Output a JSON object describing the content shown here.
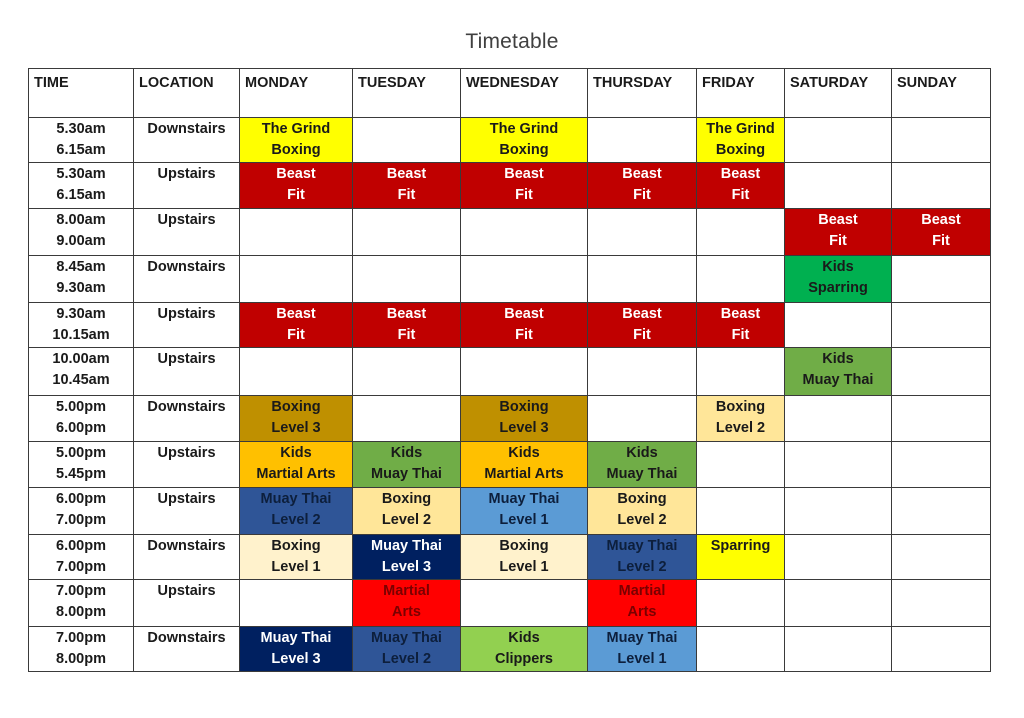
{
  "title": "Timetable",
  "colors": {
    "yellow": "#ffff00",
    "dark_red": "#c00000",
    "bright_red": "#ff0000",
    "green": "#00b050",
    "olive_green": "#70ad47",
    "light_green": "#92d050",
    "dark_gold": "#bf9000",
    "gold": "#ffc000",
    "light_tan": "#ffe699",
    "cream": "#fff2cc",
    "navy": "#002060",
    "mid_blue": "#2f5597",
    "light_blue": "#5b9bd5",
    "border": "#3a3a3a"
  },
  "headers": [
    "TIME",
    "LOCATION",
    "MONDAY",
    "TUESDAY",
    "WEDNESDAY",
    "THURSDAY",
    "FRIDAY",
    "SATURDAY",
    "SUNDAY"
  ],
  "rows": [
    {
      "time": [
        "5.30am",
        "6.15am"
      ],
      "location": "Downstairs",
      "cells": [
        [
          "The Grind",
          "Boxing",
          "yellow"
        ],
        null,
        [
          "The Grind",
          "Boxing",
          "yellow"
        ],
        null,
        [
          "The Grind",
          "Boxing",
          "yellow"
        ],
        null,
        null
      ]
    },
    {
      "time": [
        "5.30am",
        "6.15am"
      ],
      "location": "Upstairs",
      "cells": [
        [
          "Beast",
          "Fit",
          "dark_red"
        ],
        [
          "Beast",
          "Fit",
          "dark_red"
        ],
        [
          "Beast",
          "Fit",
          "dark_red"
        ],
        [
          "Beast",
          "Fit",
          "dark_red"
        ],
        [
          "Beast",
          "Fit",
          "dark_red"
        ],
        null,
        null
      ]
    },
    {
      "time": [
        "8.00am",
        "9.00am"
      ],
      "location": "Upstairs",
      "cells": [
        null,
        null,
        null,
        null,
        null,
        [
          "Beast",
          "Fit",
          "dark_red"
        ],
        [
          "Beast",
          "Fit",
          "dark_red"
        ]
      ]
    },
    {
      "time": [
        "8.45am",
        "9.30am"
      ],
      "location": "Downstairs",
      "cells": [
        null,
        null,
        null,
        null,
        null,
        [
          "Kids",
          "Sparring",
          "green"
        ],
        null
      ]
    },
    {
      "time": [
        "9.30am",
        "10.15am"
      ],
      "location": "Upstairs",
      "cells": [
        [
          "Beast",
          "Fit",
          "dark_red"
        ],
        [
          "Beast",
          "Fit",
          "dark_red"
        ],
        [
          "Beast",
          "Fit",
          "dark_red"
        ],
        [
          "Beast",
          "Fit",
          "dark_red"
        ],
        [
          "Beast",
          "Fit",
          "dark_red"
        ],
        null,
        null
      ]
    },
    {
      "time": [
        "10.00am",
        "10.45am"
      ],
      "location": "Upstairs",
      "cells": [
        null,
        null,
        null,
        null,
        null,
        [
          "Kids",
          "Muay Thai",
          "olive_green"
        ],
        null
      ]
    },
    {
      "time": [
        "5.00pm",
        "6.00pm"
      ],
      "location": "Downstairs",
      "cells": [
        [
          "Boxing",
          "Level 3",
          "dark_gold"
        ],
        null,
        [
          "Boxing",
          "Level 3",
          "dark_gold"
        ],
        null,
        [
          "Boxing",
          "Level 2",
          "light_tan"
        ],
        null,
        null
      ]
    },
    {
      "time": [
        "5.00pm",
        "5.45pm"
      ],
      "location": "Upstairs",
      "cells": [
        [
          "Kids",
          "Martial Arts",
          "gold"
        ],
        [
          "Kids",
          "Muay Thai",
          "olive_green"
        ],
        [
          "Kids",
          "Martial Arts",
          "gold"
        ],
        [
          "Kids",
          "Muay Thai",
          "olive_green"
        ],
        null,
        null,
        null
      ]
    },
    {
      "time": [
        "6.00pm",
        "7.00pm"
      ],
      "location": "Upstairs",
      "cells": [
        [
          "Muay Thai",
          "Level 2",
          "mid_blue"
        ],
        [
          "Boxing",
          "Level 2",
          "light_tan"
        ],
        [
          "Muay Thai",
          "Level 1",
          "light_blue"
        ],
        [
          "Boxing",
          "Level 2",
          "light_tan"
        ],
        null,
        null,
        null
      ]
    },
    {
      "time": [
        "6.00pm",
        "7.00pm"
      ],
      "location": "Downstairs",
      "cells": [
        [
          "Boxing",
          "Level 1",
          "cream"
        ],
        [
          "Muay Thai",
          "Level 3",
          "navy"
        ],
        [
          "Boxing",
          "Level 1",
          "cream"
        ],
        [
          "Muay Thai",
          "Level 2",
          "mid_blue"
        ],
        [
          "Sparring",
          "",
          "yellow"
        ],
        null,
        null
      ]
    },
    {
      "time": [
        "7.00pm",
        "8.00pm"
      ],
      "location": "Upstairs",
      "cells": [
        null,
        [
          "Martial",
          "Arts",
          "bright_red"
        ],
        null,
        [
          "Martial",
          "Arts",
          "bright_red"
        ],
        null,
        null,
        null
      ]
    },
    {
      "time": [
        "7.00pm",
        "8.00pm"
      ],
      "location": "Downstairs",
      "cells": [
        [
          "Muay Thai",
          "Level 3",
          "navy"
        ],
        [
          "Muay Thai",
          "Level 2",
          "mid_blue"
        ],
        [
          "Kids",
          "Clippers",
          "light_green"
        ],
        [
          "Muay Thai",
          "Level 1",
          "light_blue"
        ],
        null,
        null,
        null
      ]
    }
  ]
}
